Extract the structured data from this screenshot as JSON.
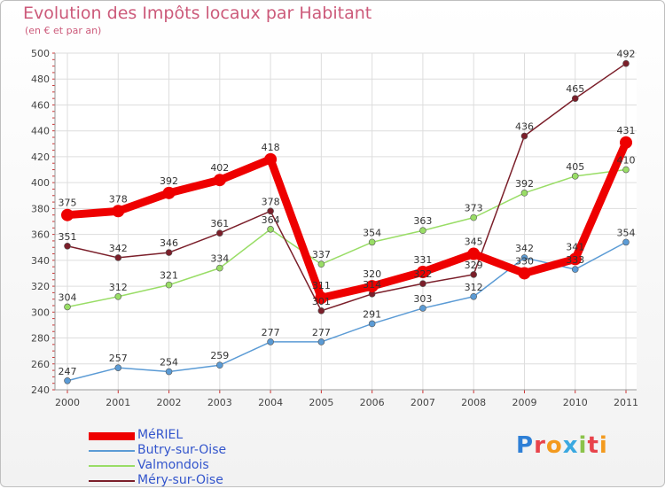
{
  "title": "Evolution des Impôts locaux par Habitant",
  "subtitle": "(en € et par an)",
  "logo": "Proxiti",
  "chart_data": {
    "type": "line",
    "title": "Evolution des Impôts locaux par Habitant",
    "subtitle": "(en € et par an)",
    "categories": [
      "2000",
      "2001",
      "2002",
      "2003",
      "2004",
      "2005",
      "2006",
      "2007",
      "2008",
      "2009",
      "2010",
      "2011"
    ],
    "ylim": [
      240,
      500
    ],
    "yticks": [
      240,
      260,
      280,
      300,
      320,
      340,
      360,
      380,
      400,
      420,
      440,
      460,
      480,
      500
    ],
    "grid": true,
    "legend_position": "bottom-left",
    "series": [
      {
        "name": "MéRIEL",
        "color": "#ee0000",
        "values": [
          375,
          378,
          392,
          402,
          418,
          311,
          320,
          331,
          345,
          330,
          341,
          431
        ]
      },
      {
        "name": "Butry-sur-Oise",
        "color": "#5b9bd5",
        "values": [
          247,
          257,
          254,
          259,
          277,
          277,
          291,
          303,
          312,
          342,
          333,
          354
        ]
      },
      {
        "name": "Valmondois",
        "color": "#99dd66",
        "values": [
          304,
          312,
          321,
          334,
          364,
          337,
          354,
          363,
          373,
          392,
          405,
          410
        ]
      },
      {
        "name": "Méry-sur-Oise",
        "color": "#7b1f2a",
        "values": [
          351,
          342,
          346,
          361,
          378,
          301,
          314,
          322,
          329,
          436,
          465,
          492
        ]
      }
    ]
  }
}
